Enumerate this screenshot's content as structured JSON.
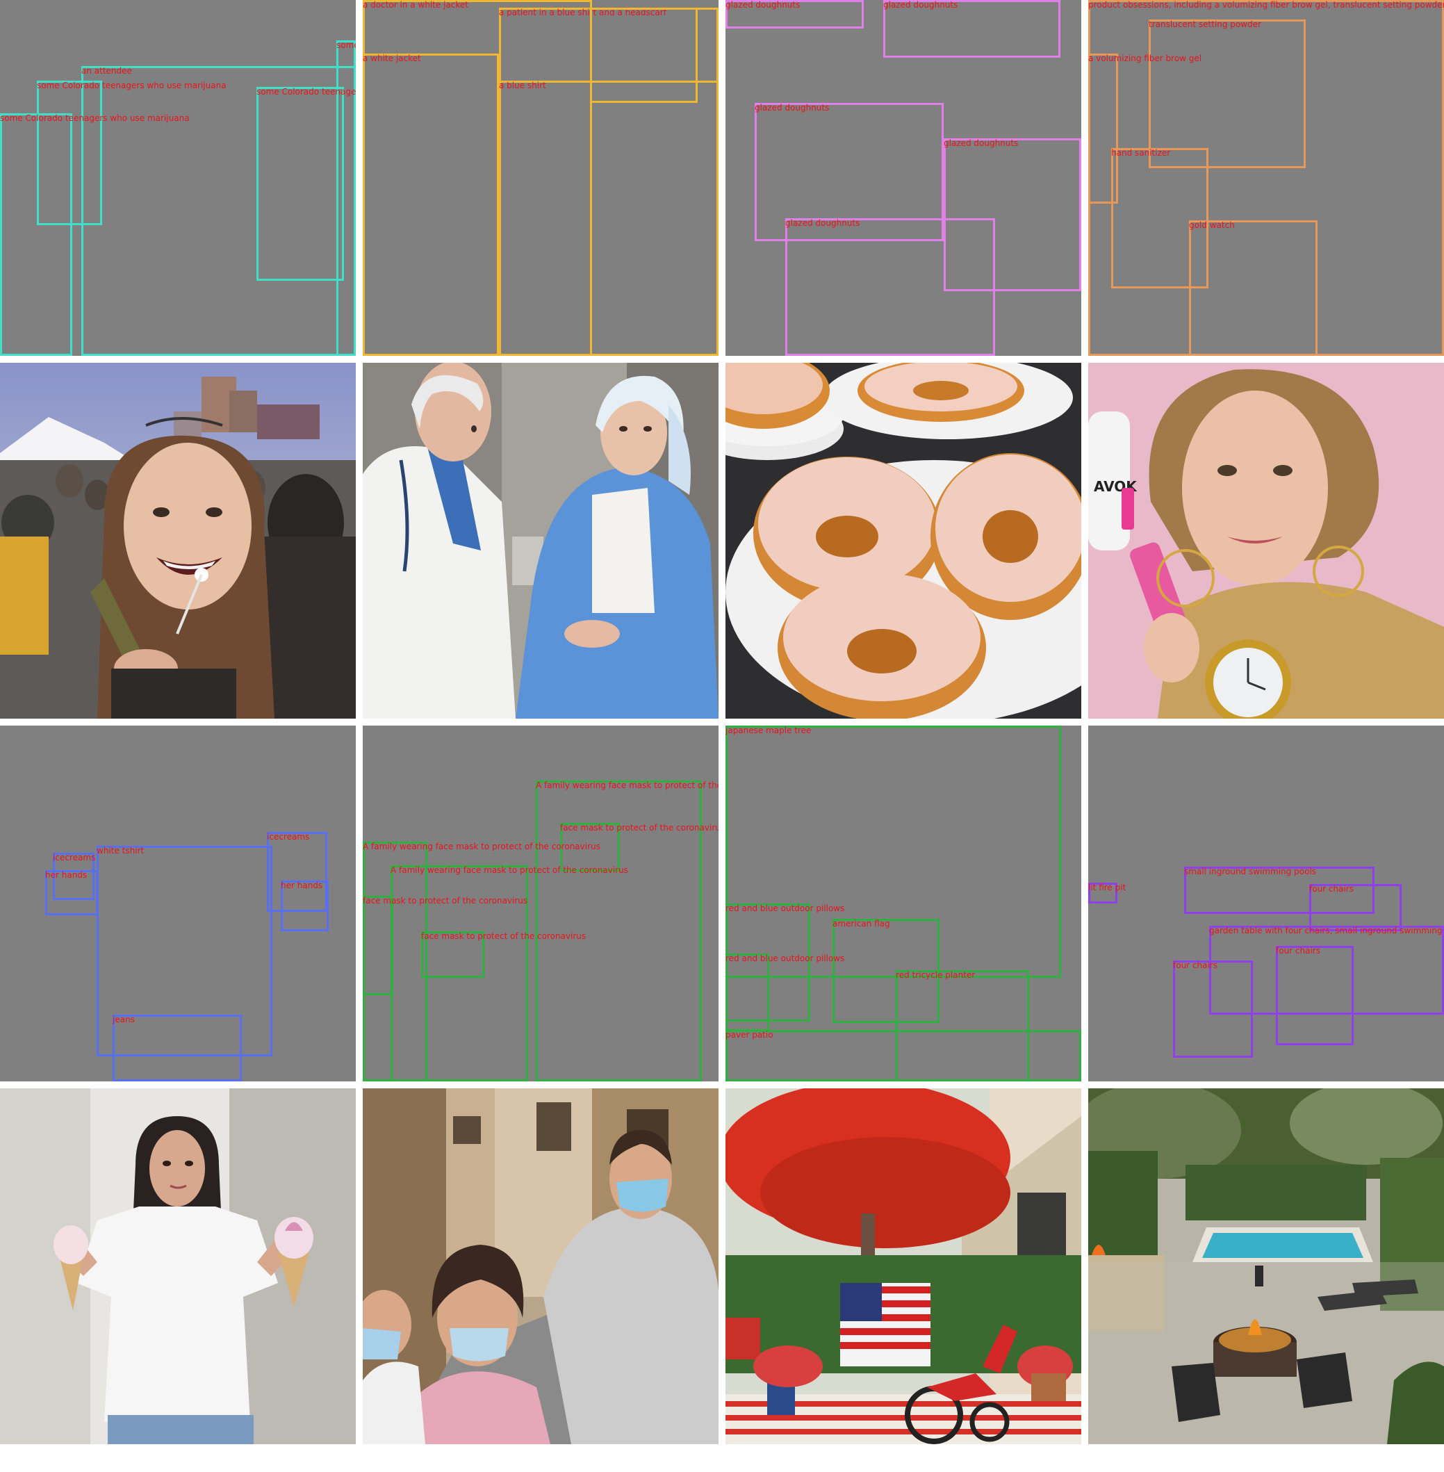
{
  "layouts": [
    {
      "color": "#40e0c8",
      "boxes": [
        {
          "label": "some"
        },
        {
          "label": "an attendee"
        },
        {
          "label": "some Colorado teenagers who use marijuana"
        },
        {
          "label": "some Colorado teenage"
        },
        {
          "label": "some Colorado teenagers who use marijuana"
        }
      ]
    },
    {
      "color": "#f0b830",
      "boxes": [
        {
          "label": "a doctor in a white jacket"
        },
        {
          "label": "a patient in a blue shirt and a headscarf"
        },
        {
          "label": "a white jacket"
        },
        {
          "label": "a blue shirt"
        },
        {
          "label": ""
        }
      ]
    },
    {
      "color": "#e080e8",
      "boxes": [
        {
          "label": "glazed doughnuts"
        },
        {
          "label": "glazed doughnuts"
        },
        {
          "label": "glazed doughnuts"
        },
        {
          "label": "glazed doughnuts"
        },
        {
          "label": "glazed doughnuts"
        }
      ]
    },
    {
      "color": "#e89858",
      "boxes": [
        {
          "label": "product obsessions, including a volumizing fiber brow gel, translucent setting powder,"
        },
        {
          "label": "translucent setting powder"
        },
        {
          "label": "a volumizing fiber brow gel"
        },
        {
          "label": "hand sanitizer"
        },
        {
          "label": "gold watch"
        }
      ]
    },
    {
      "color": "#5870f0",
      "boxes": [
        {
          "label": "icecreams"
        },
        {
          "label": "her hands"
        },
        {
          "label": "white tshirt"
        },
        {
          "label": "icecreams"
        },
        {
          "label": "her hands"
        },
        {
          "label": "jeans"
        }
      ]
    },
    {
      "color": "#30b040",
      "boxes": [
        {
          "label": "A family wearing face mask to protect of the"
        },
        {
          "label": "face mask to protect of the coronavirus"
        },
        {
          "label": "A family wearing face mask to protect of the coronavirus"
        },
        {
          "label": "A family wearing face mask to protect of the coronavirus"
        },
        {
          "label": "face mask to protect of the coronavirus"
        },
        {
          "label": "face mask to protect of the coronavirus"
        }
      ]
    },
    {
      "color": "#30b040",
      "boxes": [
        {
          "label": "japanese maple tree"
        },
        {
          "label": "red and blue outdoor pillows"
        },
        {
          "label": "american flag"
        },
        {
          "label": "red and blue outdoor pillows"
        },
        {
          "label": "red tricycle planter"
        },
        {
          "label": "paver patio"
        }
      ]
    },
    {
      "color": "#9040e8",
      "boxes": [
        {
          "label": "lit fire pit"
        },
        {
          "label": "small inground swimming pools"
        },
        {
          "label": "four chairs"
        },
        {
          "label": "garden table with four chairs, small inground swimming po"
        },
        {
          "label": "four chairs"
        },
        {
          "label": "four chairs"
        }
      ]
    }
  ],
  "photos": [
    {
      "name": "photo-festival-girl"
    },
    {
      "name": "photo-doctor-patient"
    },
    {
      "name": "photo-glazed-doughnuts"
    },
    {
      "name": "photo-woman-products"
    },
    {
      "name": "photo-woman-icecreams"
    },
    {
      "name": "photo-family-masks"
    },
    {
      "name": "photo-patio-flag-tricycle"
    },
    {
      "name": "photo-pool-firepit"
    }
  ],
  "text_on_images": {
    "bottle_brand": "AVOK"
  }
}
